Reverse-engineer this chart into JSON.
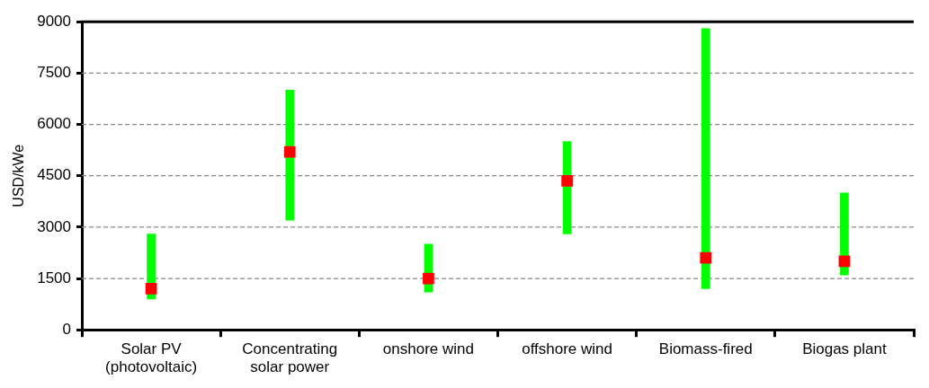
{
  "chart_data": {
    "type": "bar",
    "ylabel": "USD/kWe",
    "categories": [
      "Solar PV (photovoltaic)",
      "Concentrating solar power",
      "onshore wind",
      "offshore wind",
      "Biomass-fired",
      "Biogas plant"
    ],
    "series": [
      {
        "color": "#00ff00",
        "base": [
          900,
          3200,
          1100,
          2800,
          1200,
          1600
        ],
        "values": [
          1900,
          3800,
          1400,
          2700,
          7600,
          2400
        ]
      },
      {
        "type": "scatter",
        "color": "#ff0000",
        "marker": "square",
        "x": [
          "Solar PV (photovoltaic)",
          "Concentrating solar power",
          "onshore wind",
          "offshore wind",
          "Biomass-fired",
          "Biogas plant"
        ],
        "values": [
          1200,
          5200,
          1500,
          4350,
          2100,
          2000
        ]
      }
    ],
    "ylim": [
      0,
      9000
    ],
    "yticks": [
      0,
      1500,
      3000,
      4500,
      6000,
      7500,
      9000
    ],
    "grid": "y",
    "legend": false
  }
}
